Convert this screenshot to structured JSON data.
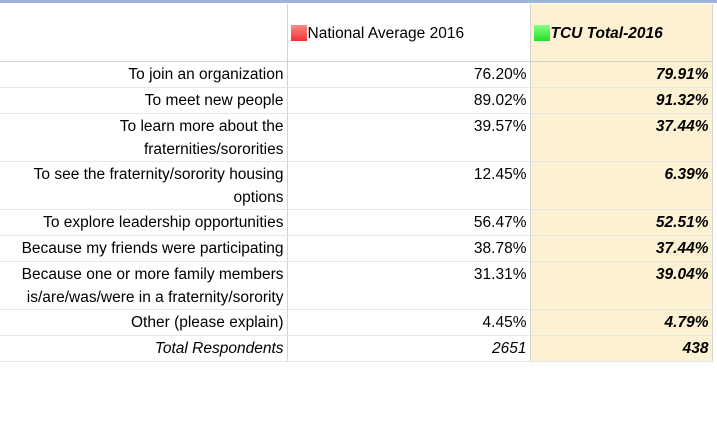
{
  "table": {
    "columns": [
      "National Average 2016",
      "TCU Total-2016"
    ],
    "rows": [
      [
        "To join an organization",
        "76.20%",
        "79.91%"
      ],
      [
        "To meet new people",
        "89.02%",
        "91.32%"
      ],
      [
        "To learn more about the fraternities/sororities",
        "39.57%",
        "37.44%"
      ],
      [
        "To see the fraternity/sorority housing options",
        "12.45%",
        "6.39%"
      ],
      [
        "To explore leadership opportunities",
        "56.47%",
        "52.51%"
      ],
      [
        "Because my friends were participating",
        "38.78%",
        "37.44%"
      ],
      [
        "Because one or more family members is/are/was/were in a fraternity/sorority",
        "31.31%",
        "39.04%"
      ],
      [
        "Other (please explain)",
        "4.45%",
        "4.79%"
      ]
    ],
    "total": [
      "Total Respondents",
      "2651",
      "438"
    ]
  }
}
